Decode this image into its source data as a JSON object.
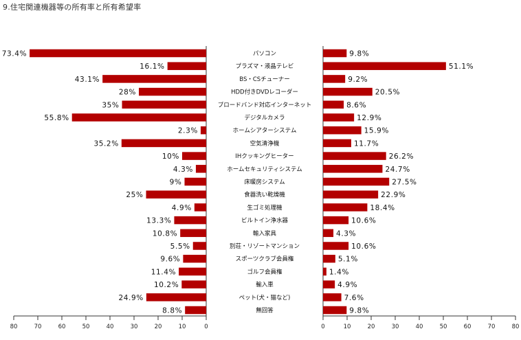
{
  "title": "9.住宅関連機器等の所有率と所有希望率",
  "chart_data": [
    {
      "type": "bar",
      "orientation": "horizontal",
      "direction": "leftward",
      "categories": [
        "パソコン",
        "プラズマ・液晶テレビ",
        "BS・CSチューナー",
        "HDD付きDVDレコーダー",
        "ブロードバンド対応インターネット",
        "デジタルカメラ",
        "ホームシアターシステム",
        "空気清浄機",
        "IHクッキングヒーター",
        "ホームセキュリティシステム",
        "床暖房システム",
        "食器洗い乾燥機",
        "生ゴミ処理機",
        "ビルトイン浄水器",
        "輸入家具",
        "別荘・リゾートマンション",
        "スポーツクラブ会員権",
        "ゴルフ会員権",
        "輸入車",
        "ペット(犬・猫など)",
        "無回答"
      ],
      "values": [
        73.4,
        16.1,
        43.1,
        28,
        35,
        55.8,
        2.3,
        35.2,
        10,
        4.3,
        9,
        25,
        4.9,
        13.3,
        10.8,
        5.5,
        9.6,
        11.4,
        10.2,
        24.9,
        8.8
      ],
      "labels": [
        "73.4%",
        "16.1%",
        "43.1%",
        "28%",
        "35%",
        "55.8%",
        "2.3%",
        "35.2%",
        "10%",
        "4.3%",
        "9%",
        "25%",
        "4.9%",
        "13.3%",
        "10.8%",
        "5.5%",
        "9.6%",
        "11.4%",
        "10.2%",
        "24.9%",
        "8.8%"
      ],
      "xlim": [
        0,
        80
      ],
      "xticks": [
        "80",
        "70",
        "60",
        "50",
        "40",
        "30",
        "20",
        "10",
        "0"
      ],
      "color": "#b30000"
    },
    {
      "type": "bar",
      "orientation": "horizontal",
      "direction": "rightward",
      "categories": [
        "パソコン",
        "プラズマ・液晶テレビ",
        "BS・CSチューナー",
        "HDD付きDVDレコーダー",
        "ブロードバンド対応インターネット",
        "デジタルカメラ",
        "ホームシアターシステム",
        "空気清浄機",
        "IHクッキングヒーター",
        "ホームセキュリティシステム",
        "床暖房システム",
        "食器洗い乾燥機",
        "生ゴミ処理機",
        "ビルトイン浄水器",
        "輸入家具",
        "別荘・リゾートマンション",
        "スポーツクラブ会員権",
        "ゴルフ会員権",
        "輸入車",
        "ペット(犬・猫など)",
        "無回答"
      ],
      "values": [
        9.8,
        51.1,
        9.2,
        20.5,
        8.6,
        12.9,
        15.9,
        11.7,
        26.2,
        24.7,
        27.5,
        22.9,
        18.4,
        10.6,
        4.3,
        10.6,
        5.1,
        1.4,
        4.9,
        7.6,
        9.8
      ],
      "labels": [
        "9.8%",
        "51.1%",
        "9.2%",
        "20.5%",
        "8.6%",
        "12.9%",
        "15.9%",
        "11.7%",
        "26.2%",
        "24.7%",
        "27.5%",
        "22.9%",
        "18.4%",
        "10.6%",
        "4.3%",
        "10.6%",
        "5.1%",
        "1.4%",
        "4.9%",
        "7.6%",
        "9.8%"
      ],
      "xlim": [
        0,
        80
      ],
      "xticks": [
        "0",
        "10",
        "20",
        "30",
        "40",
        "50",
        "60",
        "70",
        "80"
      ],
      "color": "#b30000"
    }
  ]
}
